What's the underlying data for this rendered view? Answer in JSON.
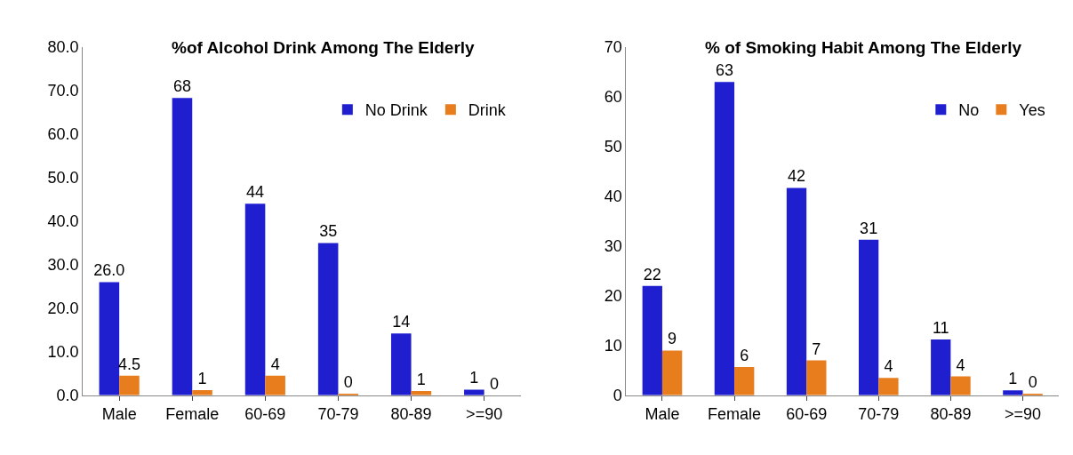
{
  "chart_data": [
    {
      "type": "bar",
      "title": "%of Alcohol Drink Among The Elderly",
      "categories": [
        "Male",
        "Female",
        "60-69",
        "70-79",
        "80-89",
        ">=90"
      ],
      "series": [
        {
          "name": "No Drink",
          "color": "#1f1fd0",
          "values": [
            26,
            68.3,
            44,
            35,
            14.2,
            1.3
          ],
          "value_labels": [
            "26.0",
            "68",
            "44",
            "35",
            "14",
            "1"
          ]
        },
        {
          "name": "Drink",
          "color": "#e87d1e",
          "values": [
            4.5,
            1.2,
            4.5,
            0.3,
            1.0,
            0
          ],
          "value_labels": [
            "4.5",
            "1",
            "4",
            "0",
            "1",
            "0"
          ]
        }
      ],
      "ylim": [
        0,
        80
      ],
      "yticks": [
        {
          "value": 0,
          "label": "0.0"
        },
        {
          "value": 10,
          "label": "10.0"
        },
        {
          "value": 20,
          "label": "20.0"
        },
        {
          "value": 30,
          "label": "30.0"
        },
        {
          "value": 40,
          "label": "40.0"
        },
        {
          "value": 50,
          "label": "50.0"
        },
        {
          "value": 60,
          "label": "60.0"
        },
        {
          "value": 70,
          "label": "70.0"
        },
        {
          "value": 80,
          "label": "80.0"
        }
      ],
      "legend": "top right"
    },
    {
      "type": "bar",
      "title": "% of Smoking Habit Among The Elderly",
      "categories": [
        "Male",
        "Female",
        "60-69",
        "70-79",
        "80-89",
        ">=90"
      ],
      "series": [
        {
          "name": "No",
          "color": "#1f1fd0",
          "values": [
            22,
            63,
            41.7,
            31.3,
            11.2,
            1
          ],
          "value_labels": [
            "22",
            "63",
            "42",
            "31",
            "11",
            "1"
          ]
        },
        {
          "name": "Yes",
          "color": "#e87d1e",
          "values": [
            9,
            5.7,
            7,
            3.5,
            3.8,
            0.3
          ],
          "value_labels": [
            "9",
            "6",
            "7",
            "4",
            "4",
            "0"
          ]
        }
      ],
      "ylim": [
        0,
        70
      ],
      "yticks": [
        0,
        10,
        20,
        30,
        40,
        50,
        60,
        70
      ],
      "legend": "top right"
    }
  ]
}
